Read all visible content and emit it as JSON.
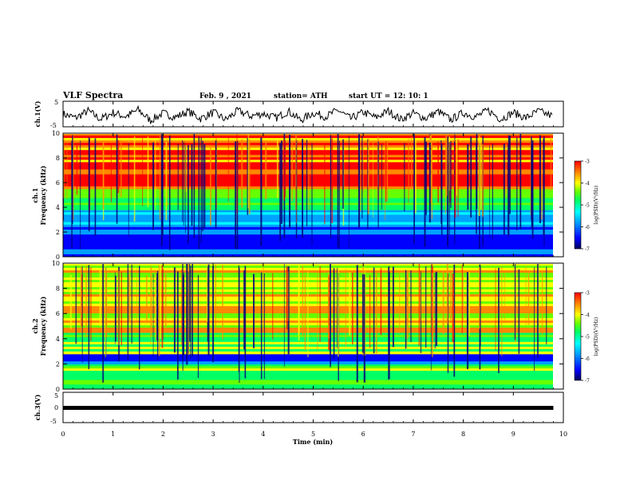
{
  "header": {
    "title": "VLF Spectra",
    "date": "Feb. 9 , 2021",
    "station": "station= ATH",
    "start": "start  UT =   12: 10: 1"
  },
  "colors": {
    "spectrum": [
      "#00007a",
      "#0000ff",
      "#00a0ff",
      "#00ffff",
      "#00ff66",
      "#66ff00",
      "#ffff00",
      "#ff8800",
      "#ff0000"
    ],
    "trace": "#000000"
  },
  "chart_data": [
    {
      "type": "line",
      "ylabel": "ch.1(V)",
      "ylim": [
        -5,
        5
      ],
      "y_ticks": [
        "5",
        "-5"
      ],
      "series": [
        {
          "x": [
            0,
            0.25,
            0.5,
            0.75,
            1,
            1.25,
            1.5,
            1.75,
            2,
            2.25,
            2.5,
            2.75,
            3,
            3.25,
            3.5,
            3.75,
            4,
            4.25,
            4.5,
            4.75,
            5,
            5.25,
            5.5,
            5.75,
            6,
            6.25,
            6.5,
            6.75,
            7,
            7.25,
            7.5,
            7.75,
            8,
            8.25,
            8.5,
            8.75,
            9,
            9.25,
            9.5,
            9.8
          ],
          "y": [
            0,
            -1.5,
            1.2,
            -2,
            0.5,
            -1,
            1.6,
            -2.5,
            0.3,
            -1.2,
            1,
            -1.8,
            0.6,
            -2.2,
            1.3,
            -0.8,
            0.2,
            -1.6,
            1.1,
            -2.4,
            0.4,
            -1,
            1.5,
            -1.9,
            0.7,
            -1.4,
            1.2,
            -2.1,
            0.3,
            -1.7,
            1,
            -2.3,
            0.5,
            -1.1,
            1.4,
            -2,
            0.6,
            -1.5,
            1.1,
            -0.9
          ]
        }
      ]
    },
    {
      "type": "heatmap",
      "ylabel": "ch.1\nFrequency  (kHz)",
      "ylim": [
        0,
        10
      ],
      "y_ticks": [
        "0",
        "2",
        "4",
        "6",
        "8",
        "10"
      ],
      "colorbar": {
        "label": "log(PSD)(V²/Hz)",
        "ticks": [
          "-3",
          "-4",
          "-5",
          "-6",
          "-7"
        ]
      },
      "bands": [
        {
          "from_khz": 0,
          "to_khz": 0.8,
          "level": "low"
        },
        {
          "from_khz": 0.8,
          "to_khz": 2.0,
          "level": "very low"
        },
        {
          "from_khz": 2.0,
          "to_khz": 3.8,
          "level": "low"
        },
        {
          "from_khz": 3.8,
          "to_khz": 5.5,
          "level": "medium"
        },
        {
          "from_khz": 5.5,
          "to_khz": 10,
          "level": "high"
        }
      ]
    },
    {
      "type": "heatmap",
      "ylabel": "ch.2\nFrequency  (kHz)",
      "ylim": [
        0,
        10
      ],
      "y_ticks": [
        "0",
        "2",
        "4",
        "6",
        "8",
        "10"
      ],
      "colorbar": {
        "label": "log(PSD)(V²/Hz)",
        "ticks": [
          "-3",
          "-4",
          "-5",
          "-6",
          "-7"
        ]
      },
      "bands": [
        {
          "from_khz": 0,
          "to_khz": 2.0,
          "level": "medium"
        },
        {
          "from_khz": 2.0,
          "to_khz": 2.8,
          "level": "low"
        },
        {
          "from_khz": 2.8,
          "to_khz": 4.5,
          "level": "medium"
        },
        {
          "from_khz": 4.5,
          "to_khz": 10,
          "level": "medium-high"
        }
      ]
    },
    {
      "type": "line",
      "ylabel": "ch.3(V)",
      "ylim": [
        -5,
        5
      ],
      "y_ticks": [
        "5",
        "0",
        "-5"
      ],
      "series": [
        {
          "x": [
            0,
            9.8
          ],
          "y": [
            0,
            0
          ]
        }
      ]
    }
  ],
  "x_axis": {
    "label": "Time  (min)",
    "ticks": [
      "0",
      "1",
      "2",
      "3",
      "4",
      "5",
      "6",
      "7",
      "8",
      "9",
      "10"
    ],
    "xlim": [
      0,
      10
    ]
  }
}
